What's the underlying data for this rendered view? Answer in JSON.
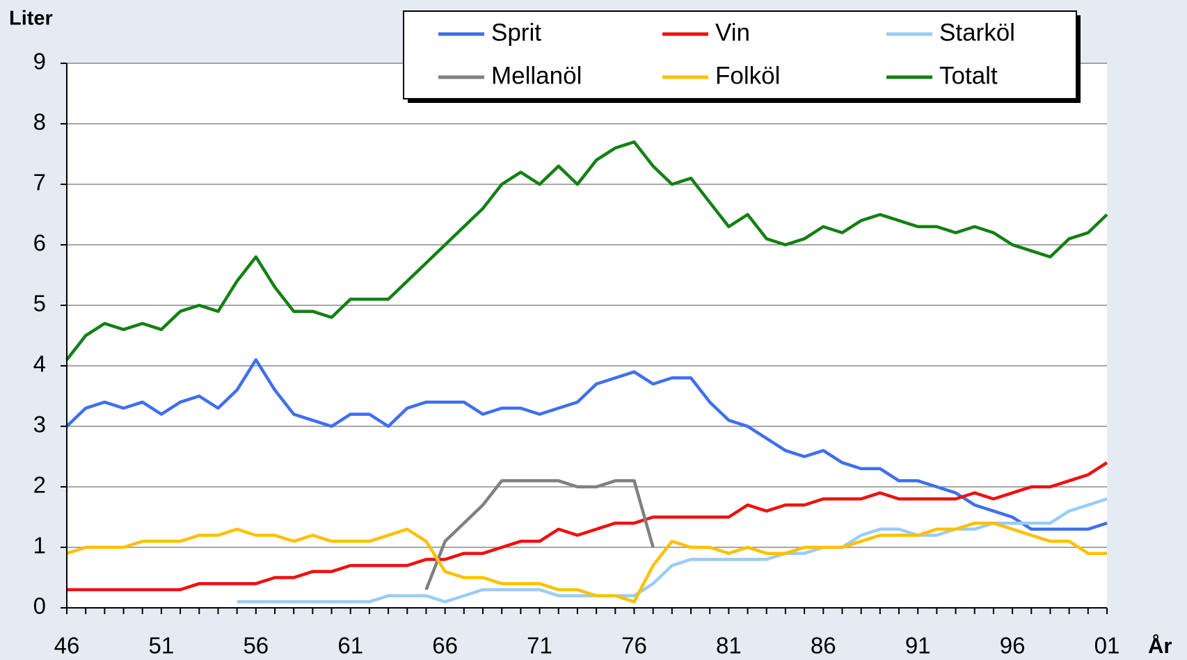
{
  "chart_data": {
    "type": "line",
    "y_label": "Liter",
    "x_label": "År",
    "categories": [
      "46",
      null,
      null,
      null,
      null,
      "51",
      null,
      null,
      null,
      null,
      "56",
      null,
      null,
      null,
      null,
      "61",
      null,
      null,
      null,
      null,
      "66",
      null,
      null,
      null,
      null,
      "71",
      null,
      null,
      null,
      null,
      "76",
      null,
      null,
      null,
      null,
      "81",
      null,
      null,
      null,
      null,
      "86",
      null,
      null,
      null,
      null,
      "91",
      null,
      null,
      null,
      null,
      "96",
      null,
      null,
      null,
      null,
      "01"
    ],
    "ylim": [
      0,
      9
    ],
    "yticks": [
      0,
      1,
      2,
      3,
      4,
      5,
      6,
      7,
      8,
      9
    ],
    "grid": true,
    "series": [
      {
        "name": "Sprit",
        "color": "#3f6ff0",
        "values": [
          3.0,
          3.3,
          3.4,
          3.3,
          3.4,
          3.2,
          3.4,
          3.5,
          3.3,
          3.6,
          4.1,
          3.6,
          3.2,
          3.1,
          3.0,
          3.2,
          3.2,
          3.0,
          3.3,
          3.4,
          3.4,
          3.4,
          3.2,
          3.3,
          3.3,
          3.2,
          3.3,
          3.4,
          3.7,
          3.8,
          3.9,
          3.7,
          3.8,
          3.8,
          3.4,
          3.1,
          3.0,
          2.8,
          2.6,
          2.5,
          2.6,
          2.4,
          2.3,
          2.3,
          2.1,
          2.1,
          2.0,
          1.9,
          1.7,
          1.6,
          1.5,
          1.3,
          1.3,
          1.3,
          1.3,
          1.4
        ]
      },
      {
        "name": "Vin",
        "color": "#ee1111",
        "values": [
          0.3,
          0.3,
          0.3,
          0.3,
          0.3,
          0.3,
          0.3,
          0.4,
          0.4,
          0.4,
          0.4,
          0.5,
          0.5,
          0.6,
          0.6,
          0.7,
          0.7,
          0.7,
          0.7,
          0.8,
          0.8,
          0.9,
          0.9,
          1.0,
          1.1,
          1.1,
          1.3,
          1.2,
          1.3,
          1.4,
          1.4,
          1.5,
          1.5,
          1.5,
          1.5,
          1.5,
          1.7,
          1.6,
          1.7,
          1.7,
          1.8,
          1.8,
          1.8,
          1.9,
          1.8,
          1.8,
          1.8,
          1.8,
          1.9,
          1.8,
          1.9,
          2.0,
          2.0,
          2.1,
          2.2,
          2.4
        ]
      },
      {
        "name": "Starköl",
        "color": "#99ccf8",
        "values": [
          null,
          null,
          null,
          null,
          null,
          null,
          null,
          null,
          null,
          0.1,
          0.1,
          0.1,
          0.1,
          0.1,
          0.1,
          0.1,
          0.1,
          0.2,
          0.2,
          0.2,
          0.1,
          0.2,
          0.3,
          0.3,
          0.3,
          0.3,
          0.2,
          0.2,
          0.2,
          0.2,
          0.2,
          0.4,
          0.7,
          0.8,
          0.8,
          0.8,
          0.8,
          0.8,
          0.9,
          0.9,
          1.0,
          1.0,
          1.2,
          1.3,
          1.3,
          1.2,
          1.2,
          1.3,
          1.3,
          1.4,
          1.4,
          1.4,
          1.4,
          1.6,
          1.7,
          1.8
        ]
      },
      {
        "name": "Mellanöl",
        "color": "#808080",
        "values": [
          null,
          null,
          null,
          null,
          null,
          null,
          null,
          null,
          null,
          null,
          null,
          null,
          null,
          null,
          null,
          null,
          null,
          null,
          null,
          0.3,
          1.1,
          1.4,
          1.7,
          2.1,
          2.1,
          2.1,
          2.1,
          2.0,
          2.0,
          2.1,
          2.1,
          1.0,
          null,
          null,
          null,
          null,
          null,
          null,
          null,
          null,
          null,
          null,
          null,
          null,
          null,
          null,
          null,
          null,
          null,
          null,
          null,
          null,
          null,
          null,
          null,
          null
        ]
      },
      {
        "name": "Folköl",
        "color": "#ffc000",
        "values": [
          0.9,
          1.0,
          1.0,
          1.0,
          1.1,
          1.1,
          1.1,
          1.2,
          1.2,
          1.3,
          1.2,
          1.2,
          1.1,
          1.2,
          1.1,
          1.1,
          1.1,
          1.2,
          1.3,
          1.1,
          0.6,
          0.5,
          0.5,
          0.4,
          0.4,
          0.4,
          0.3,
          0.3,
          0.2,
          0.2,
          0.1,
          0.7,
          1.1,
          1.0,
          1.0,
          0.9,
          1.0,
          0.9,
          0.9,
          1.0,
          1.0,
          1.0,
          1.1,
          1.2,
          1.2,
          1.2,
          1.3,
          1.3,
          1.4,
          1.4,
          1.3,
          1.2,
          1.1,
          1.1,
          0.9,
          0.9
        ]
      },
      {
        "name": "Totalt",
        "color": "#138013",
        "values": [
          4.1,
          4.5,
          4.7,
          4.6,
          4.7,
          4.6,
          4.9,
          5.0,
          4.9,
          5.4,
          5.8,
          5.3,
          4.9,
          4.9,
          4.8,
          5.1,
          5.1,
          5.1,
          5.4,
          5.7,
          6.0,
          6.3,
          6.6,
          7.0,
          7.2,
          7.0,
          7.3,
          7.0,
          7.4,
          7.6,
          7.7,
          7.3,
          7.0,
          7.1,
          6.7,
          6.3,
          6.5,
          6.1,
          6.0,
          6.1,
          6.3,
          6.2,
          6.4,
          6.5,
          6.4,
          6.3,
          6.3,
          6.2,
          6.3,
          6.2,
          6.0,
          5.9,
          5.8,
          6.1,
          6.2,
          6.5
        ]
      }
    ]
  }
}
